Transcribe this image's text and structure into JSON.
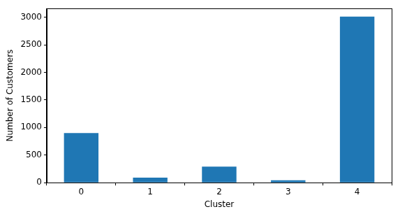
{
  "chart_data": {
    "type": "bar",
    "x_label": "Cluster",
    "y_label": "Number of Customers",
    "categories": [
      "0",
      "1",
      "2",
      "3",
      "4"
    ],
    "values": [
      900,
      90,
      290,
      45,
      3010
    ],
    "color": "#1f77b4",
    "ylim": [
      0,
      3160
    ],
    "yticks": [
      0,
      500,
      1000,
      1500,
      2000,
      2500,
      3000
    ],
    "grid": false
  }
}
